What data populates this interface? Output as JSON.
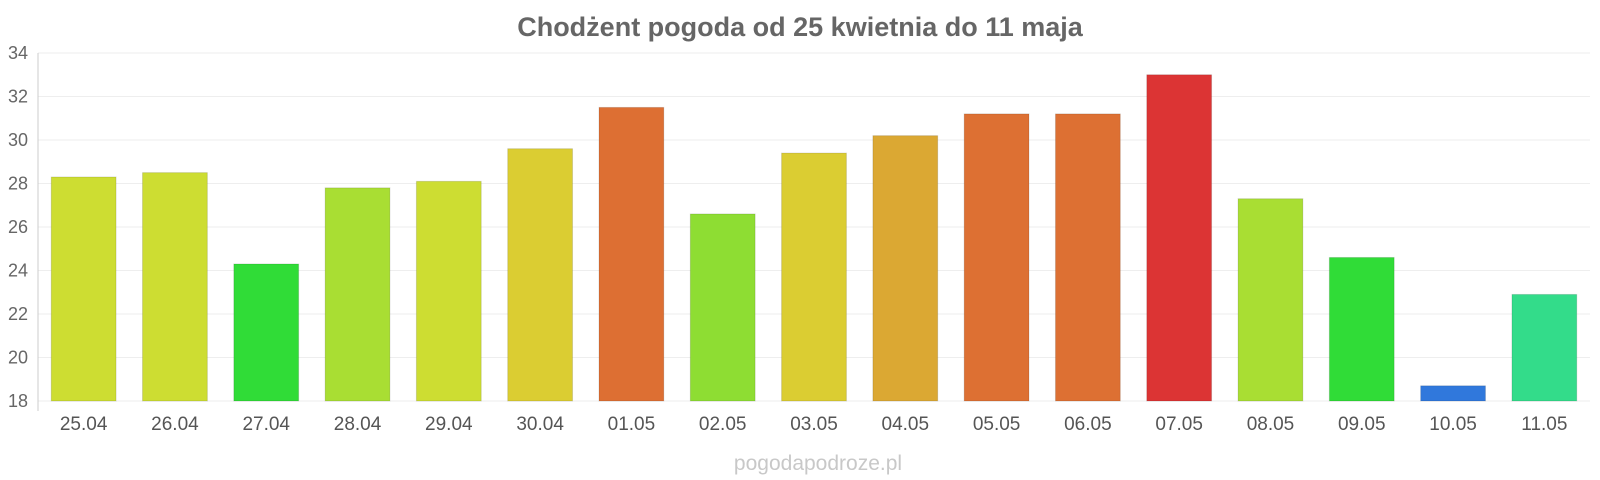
{
  "chart_data": {
    "type": "bar",
    "title": "Chodżent pogoda od 25 kwietnia do 11 maja",
    "xlabel": "",
    "ylabel": "",
    "ylim": [
      18,
      34
    ],
    "yticks": [
      18,
      20,
      22,
      24,
      26,
      28,
      30,
      32,
      34
    ],
    "grid": true,
    "legend": "none",
    "categories": [
      "25.04",
      "26.04",
      "27.04",
      "28.04",
      "29.04",
      "30.04",
      "01.05",
      "02.05",
      "03.05",
      "04.05",
      "05.05",
      "06.05",
      "07.05",
      "08.05",
      "09.05",
      "10.05",
      "11.05"
    ],
    "series": [
      {
        "values": [
          28.3,
          28.5,
          24.3,
          27.8,
          28.1,
          29.6,
          31.5,
          26.6,
          29.4,
          30.2,
          31.2,
          31.2,
          33.0,
          27.3,
          24.6,
          18.7,
          22.9
        ],
        "colors": [
          "#cddd32",
          "#cddd32",
          "#30dc37",
          "#a9de33",
          "#cddd32",
          "#dbcd32",
          "#dd6f33",
          "#8edd33",
          "#dbcd32",
          "#dba833",
          "#dd7033",
          "#dd7033",
          "#dc3434",
          "#a9de33",
          "#30dc37",
          "#3078dc",
          "#33dc8a"
        ]
      }
    ]
  },
  "footer": {
    "source": "pogodapodroze.pl"
  }
}
